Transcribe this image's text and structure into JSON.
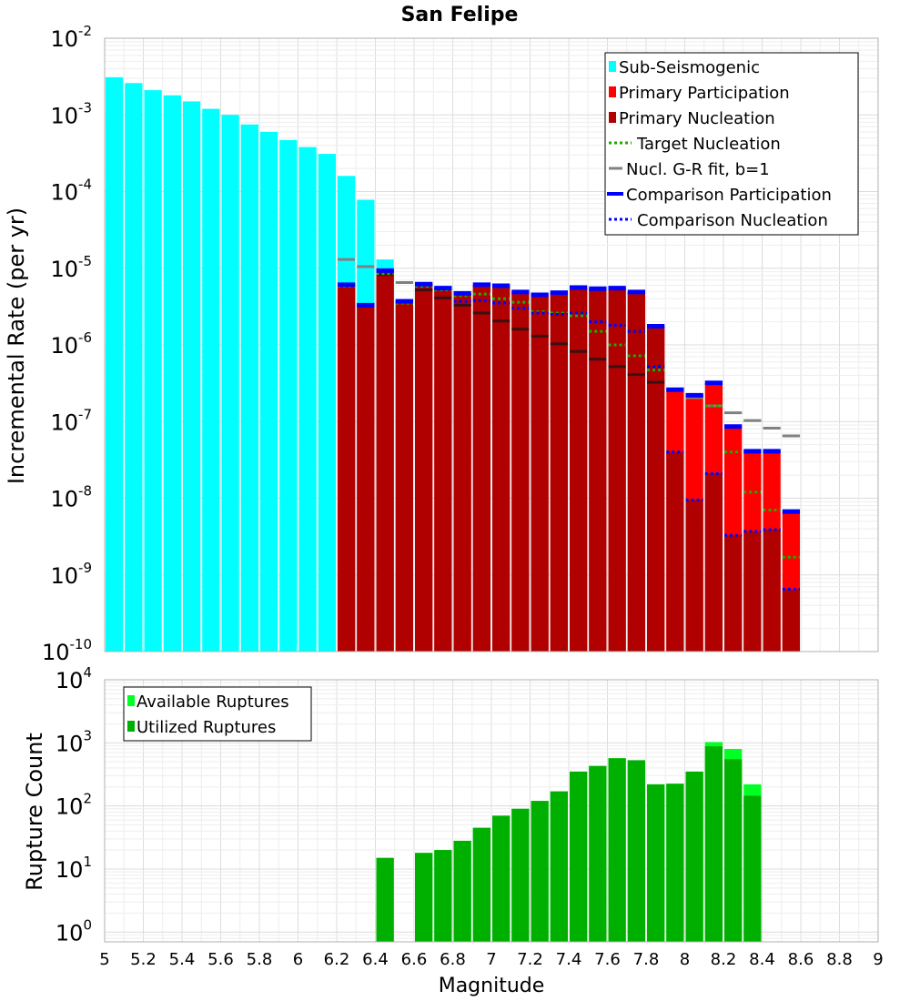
{
  "chart_data": [
    {
      "type": "bar",
      "title": "San Felipe",
      "xlabel": "",
      "ylabel": "Incremental Rate (per yr)",
      "yscale": "log",
      "ylim": [
        1e-10,
        0.01
      ],
      "xlim": [
        5,
        9
      ],
      "bin_width": 0.1,
      "legend_position": "top-right",
      "legend": [
        "Sub-Seismogenic",
        "Primary Participation",
        "Primary Nucleation",
        "Target Nucleation",
        "Nucl. G-R fit, b=1",
        "Comparison Participation",
        "Comparison Nucleation"
      ],
      "y_tick_labels": [
        {
          "base": "10",
          "exp": "-10"
        },
        {
          "base": "10",
          "exp": "-9"
        },
        {
          "base": "10",
          "exp": "-8"
        },
        {
          "base": "10",
          "exp": "-7"
        },
        {
          "base": "10",
          "exp": "-6"
        },
        {
          "base": "10",
          "exp": "-5"
        },
        {
          "base": "10",
          "exp": "-4"
        },
        {
          "base": "10",
          "exp": "-3"
        },
        {
          "base": "10",
          "exp": "-2"
        }
      ],
      "series": [
        {
          "name": "Sub-Seismogenic",
          "style": "bar",
          "x": [
            5.05,
            5.15,
            5.25,
            5.35,
            5.45,
            5.55,
            5.65,
            5.75,
            5.85,
            5.95,
            6.05,
            6.15,
            6.25,
            6.35,
            6.45
          ],
          "values": [
            0.0031,
            0.0026,
            0.0021,
            0.0018,
            0.0015,
            0.0012,
            0.001,
            0.00075,
            0.0006,
            0.00047,
            0.00038,
            0.00031,
            0.00016,
            7.8e-05,
            1.3e-05
          ]
        },
        {
          "name": "Primary Participation",
          "style": "bar",
          "x": [
            6.25,
            6.35,
            6.45,
            6.55,
            6.65,
            6.75,
            6.85,
            6.95,
            7.05,
            7.15,
            7.25,
            7.35,
            7.45,
            7.55,
            7.65,
            7.75,
            7.85,
            7.95,
            8.05,
            8.15,
            8.25,
            8.35,
            8.45,
            8.55
          ],
          "values": [
            6.1e-06,
            3.3e-06,
            9.3e-06,
            3.7e-06,
            6.2e-06,
            5.5e-06,
            4.7e-06,
            6.1e-06,
            5.9e-06,
            4.9e-06,
            4.5e-06,
            4.8e-06,
            5.6e-06,
            5.4e-06,
            5.5e-06,
            4.9e-06,
            1.75e-06,
            2.6e-07,
            2.2e-07,
            3.2e-07,
            8.6e-08,
            4.1e-08,
            4.1e-08,
            6.7e-09
          ]
        },
        {
          "name": "Primary Nucleation",
          "style": "bar",
          "x": [
            6.25,
            6.35,
            6.45,
            6.55,
            6.65,
            6.75,
            6.85,
            6.95,
            7.05,
            7.15,
            7.25,
            7.35,
            7.45,
            7.55,
            7.65,
            7.75,
            7.85,
            7.95,
            8.05,
            8.15,
            8.25,
            8.35,
            8.45,
            8.55
          ],
          "values": [
            6.1e-06,
            3.3e-06,
            9.3e-06,
            3.7e-06,
            6.2e-06,
            5.5e-06,
            4.7e-06,
            6.1e-06,
            5.9e-06,
            4.9e-06,
            4.5e-06,
            4.8e-06,
            5.6e-06,
            5.4e-06,
            5.5e-06,
            4.9e-06,
            1.75e-06,
            4e-08,
            9.5e-09,
            2.1e-08,
            3.3e-09,
            3.7e-09,
            3.9e-09,
            6.5e-10
          ]
        },
        {
          "name": "Target Nucleation",
          "style": "dotted",
          "color": "#22aa00",
          "x": [
            6.25,
            6.35,
            6.45,
            6.55,
            6.65,
            6.75,
            6.85,
            6.95,
            7.05,
            7.15,
            7.25,
            7.35,
            7.45,
            7.55,
            7.65,
            7.75,
            7.85,
            7.95,
            8.05,
            8.15,
            8.25,
            8.35,
            8.45,
            8.55
          ],
          "values": [
            5.8e-06,
            3.3e-06,
            8.5e-06,
            3.5e-06,
            5.8e-06,
            5.2e-06,
            4.4e-06,
            4.6e-06,
            4e-06,
            3.6e-06,
            2.7e-06,
            2.6e-06,
            2.4e-06,
            1.5e-06,
            1e-06,
            7.2e-07,
            4.7e-07,
            2.6e-07,
            2.2e-07,
            1.6e-07,
            4e-08,
            1.2e-08,
            7e-09,
            1.7e-09
          ]
        },
        {
          "name": "Nucl. G-R fit, b=1",
          "style": "line",
          "x": [
            6.25,
            6.35,
            6.45,
            6.55,
            6.65,
            6.75,
            6.85,
            6.95,
            7.05,
            7.15,
            7.25,
            7.35,
            7.45,
            7.55,
            7.65,
            7.75,
            7.85,
            7.95,
            8.05,
            8.15,
            8.25,
            8.35,
            8.45,
            8.55
          ],
          "values": [
            1.3e-05,
            1.05e-05,
            8.3e-06,
            6.5e-06,
            5.2e-06,
            4.1e-06,
            3.3e-06,
            2.6e-06,
            2.05e-06,
            1.6e-06,
            1.3e-06,
            1.03e-06,
            8.2e-07,
            6.5e-07,
            5.2e-07,
            4.1e-07,
            3.25e-07,
            2.6e-07,
            2.05e-07,
            1.6e-07,
            1.3e-07,
            1.03e-07,
            8.2e-08,
            6.5e-08
          ]
        },
        {
          "name": "Comparison Participation",
          "style": "line",
          "color": "#0000ff",
          "x": [
            6.25,
            6.35,
            6.45,
            6.55,
            6.65,
            6.75,
            6.85,
            6.95,
            7.05,
            7.15,
            7.25,
            7.35,
            7.45,
            7.55,
            7.65,
            7.75,
            7.85,
            7.95,
            8.05,
            8.15,
            8.25,
            8.35,
            8.45,
            8.55
          ],
          "values": [
            6.1e-06,
            3.3e-06,
            9.3e-06,
            3.7e-06,
            6.2e-06,
            5.5e-06,
            4.7e-06,
            6.1e-06,
            5.9e-06,
            4.9e-06,
            4.5e-06,
            4.8e-06,
            5.6e-06,
            5.4e-06,
            5.5e-06,
            4.9e-06,
            1.75e-06,
            2.6e-07,
            2.2e-07,
            3.2e-07,
            8.6e-08,
            4.1e-08,
            4.1e-08,
            6.7e-09
          ]
        },
        {
          "name": "Comparison Nucleation",
          "style": "dotted",
          "color": "#0000ff",
          "x": [
            6.25,
            6.35,
            6.45,
            6.55,
            6.65,
            6.75,
            6.85,
            6.95,
            7.05,
            7.15,
            7.25,
            7.35,
            7.45,
            7.55,
            7.65,
            7.75,
            7.85,
            7.95,
            8.05,
            8.15,
            8.25,
            8.35,
            8.45,
            8.55
          ],
          "values": [
            6.1e-06,
            3.3e-06,
            9.3e-06,
            3.7e-06,
            6.2e-06,
            5.5e-06,
            3.7e-06,
            3.8e-06,
            3.5e-06,
            3e-06,
            2.6e-06,
            2.5e-06,
            2.6e-06,
            2e-06,
            1.8e-06,
            1.5e-06,
            5.2e-07,
            4e-08,
            9.5e-09,
            2.1e-08,
            3.3e-09,
            3.7e-09,
            3.9e-09,
            6.5e-10
          ]
        }
      ],
      "colors": {
        "sub": "#00ffff",
        "participation": "#ff0000",
        "nucleation": "#b00000",
        "target": "#22aa00",
        "gr": "#808080",
        "comp_part": "#0000ff",
        "comp_nucl": "#0000ff"
      }
    },
    {
      "type": "bar",
      "title": "",
      "xlabel": "Magnitude",
      "ylabel": "Rupture Count",
      "yscale": "log",
      "ylim": [
        0.7,
        10000
      ],
      "xlim": [
        5,
        9
      ],
      "bin_width": 0.1,
      "legend_position": "top-left",
      "legend": [
        "Available Ruptures",
        "Utilized Ruptures"
      ],
      "x_ticks": [
        5,
        5.2,
        5.4,
        5.6,
        5.8,
        6,
        6.2,
        6.4,
        6.6,
        6.8,
        7,
        7.2,
        7.4,
        7.6,
        7.8,
        8,
        8.2,
        8.4,
        8.6,
        8.8,
        9
      ],
      "x_tick_labels": [
        "5",
        "5.2",
        "5.4",
        "5.6",
        "5.8",
        "6",
        "6.2",
        "6.4",
        "6.6",
        "6.8",
        "7",
        "7.2",
        "7.4",
        "7.6",
        "7.8",
        "8",
        "8.2",
        "8.4",
        "8.6",
        "8.8",
        "9"
      ],
      "y_tick_labels": [
        {
          "base": "10",
          "exp": "0"
        },
        {
          "base": "10",
          "exp": "1"
        },
        {
          "base": "10",
          "exp": "2"
        },
        {
          "base": "10",
          "exp": "3"
        },
        {
          "base": "10",
          "exp": "4"
        }
      ],
      "series": [
        {
          "name": "Available Ruptures",
          "x": [
            6.45,
            6.65,
            6.75,
            6.85,
            6.95,
            7.05,
            7.15,
            7.25,
            7.35,
            7.45,
            7.55,
            7.65,
            7.75,
            7.85,
            7.95,
            8.05,
            8.15,
            8.25,
            8.35
          ],
          "values": [
            15,
            18,
            20,
            28,
            45,
            70,
            90,
            120,
            170,
            350,
            430,
            570,
            530,
            220,
            225,
            350,
            1030,
            800,
            220
          ]
        },
        {
          "name": "Utilized Ruptures",
          "x": [
            6.45,
            6.65,
            6.75,
            6.85,
            6.95,
            7.05,
            7.15,
            7.25,
            7.35,
            7.45,
            7.55,
            7.65,
            7.75,
            7.85,
            7.95,
            8.05,
            8.15,
            8.25,
            8.35
          ],
          "values": [
            15,
            18,
            20,
            28,
            45,
            70,
            90,
            120,
            170,
            350,
            430,
            570,
            530,
            220,
            225,
            350,
            880,
            550,
            145
          ]
        }
      ],
      "colors": {
        "available": "#00ff22",
        "utilized": "#00b000"
      }
    }
  ]
}
